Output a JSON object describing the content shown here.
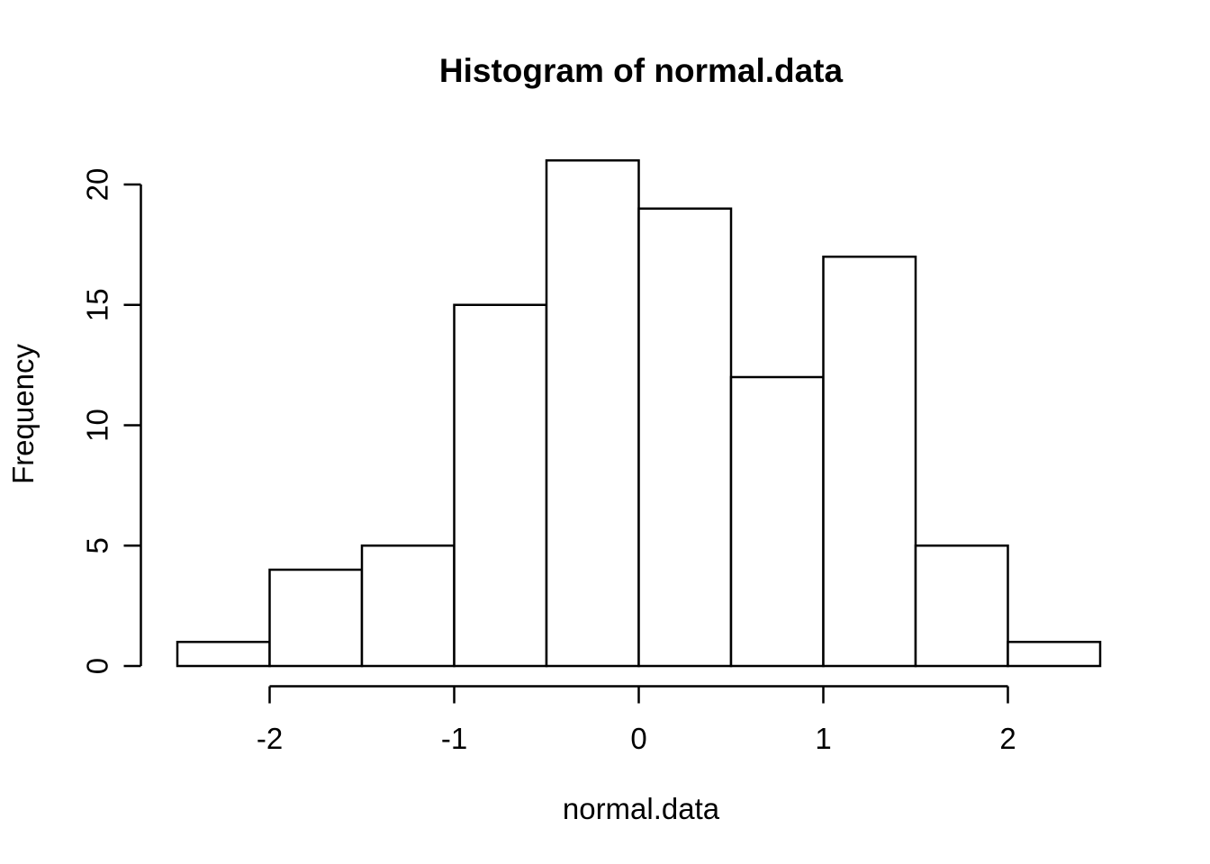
{
  "chart_data": {
    "type": "bar",
    "subtype": "histogram",
    "title": "Histogram of normal.data",
    "xlabel": "normal.data",
    "ylabel": "Frequency",
    "bin_breaks": [
      -2.5,
      -2.0,
      -1.5,
      -1.0,
      -0.5,
      0.0,
      0.5,
      1.0,
      1.5,
      2.0,
      2.5
    ],
    "counts": [
      1,
      4,
      5,
      15,
      21,
      19,
      12,
      17,
      5,
      1
    ],
    "x_ticks": [
      "-2",
      "-1",
      "0",
      "1",
      "2"
    ],
    "x_tick_values": [
      -2,
      -1,
      0,
      1,
      2
    ],
    "y_ticks": [
      "0",
      "5",
      "10",
      "15",
      "20"
    ],
    "y_tick_values": [
      0,
      5,
      10,
      15,
      20
    ],
    "xlim": [
      -2.5,
      2.5
    ],
    "ylim": [
      0,
      20
    ],
    "grid": "off",
    "legend": "none",
    "bar_fill": "#ffffff",
    "bar_stroke": "#000000",
    "axis_color": "#000000",
    "background": "#ffffff"
  }
}
